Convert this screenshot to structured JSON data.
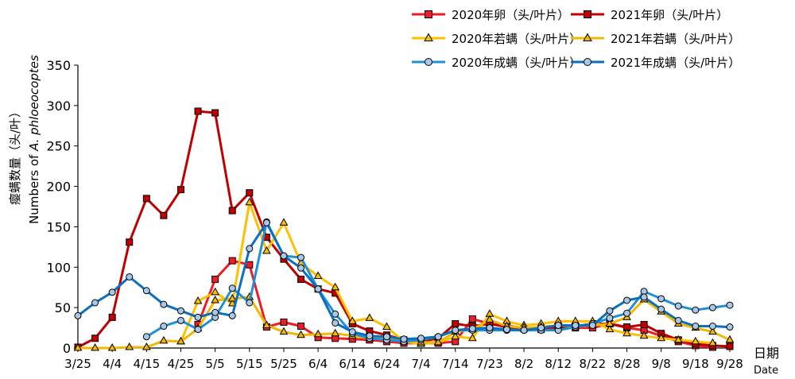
{
  "chart_data": {
    "type": "line",
    "xlabel_zh": "日期",
    "xlabel_en": "Date",
    "ylabel_zh": "瘿螨数量（头/叶）",
    "ylabel_en_prefix": "Numbers of ",
    "ylabel_en_species": "A. phloeocoptes",
    "ylim": [
      0,
      350
    ],
    "yticks": [
      0,
      50,
      100,
      150,
      200,
      250,
      300,
      350
    ],
    "xticks": [
      "3/25",
      "4/4",
      "4/15",
      "4/25",
      "5/5",
      "5/15",
      "5/25",
      "6/4",
      "6/14",
      "6/24",
      "7/4",
      "7/14",
      "7/23",
      "8/2",
      "8/12",
      "8/22",
      "8/28",
      "9/8",
      "9/18",
      "9/28"
    ],
    "x_domain": [
      0,
      19
    ],
    "legend_placement": "top-right",
    "series": [
      {
        "name": "2020年卵（头/叶片）",
        "color": "#ee1c25",
        "marker": "square",
        "x": [
          3.5,
          4,
          4.5,
          5,
          5.5,
          6,
          6.5,
          7,
          7.5,
          8,
          8.5,
          9,
          9.5,
          10,
          10.5,
          11,
          11.5,
          12,
          12.5,
          13,
          13.5,
          14,
          14.5,
          15,
          15.5,
          16,
          16.5,
          17,
          17.5,
          18,
          18.5
        ],
        "y": [
          29,
          85,
          108,
          103,
          26,
          32,
          27,
          13,
          12,
          11,
          10,
          8,
          6,
          6,
          6,
          8,
          36,
          30,
          28,
          24,
          23,
          25,
          25,
          25,
          30,
          25,
          22,
          15,
          8,
          3,
          1
        ]
      },
      {
        "name": "2021年卵（头/叶片）",
        "color": "#c00000",
        "marker": "square",
        "x": [
          0,
          0.5,
          1,
          1.5,
          2,
          2.5,
          3,
          3.5,
          4,
          4.5,
          5,
          5.5,
          6,
          6.5,
          7,
          7.5,
          8,
          8.5,
          9,
          9.5,
          10,
          10.5,
          11,
          11.5,
          12,
          12.5,
          13,
          13.5,
          14,
          14.5,
          15,
          15.5,
          16,
          16.5,
          17,
          17.5,
          18,
          18.5,
          19
        ],
        "y": [
          1,
          12,
          38,
          131,
          185,
          164,
          196,
          293,
          291,
          170,
          192,
          137,
          110,
          85,
          73,
          68,
          30,
          21,
          16,
          10,
          8,
          12,
          30,
          27,
          30,
          26,
          24,
          25,
          26,
          27,
          30,
          30,
          26,
          29,
          18,
          10,
          5,
          3,
          2
        ]
      },
      {
        "name": "2020年若螨（头/叶片）",
        "color": "#ffc000",
        "marker": "triangle",
        "x": [
          3,
          3.5,
          4,
          4.5,
          5,
          5.5,
          6,
          6.5,
          7,
          7.5,
          8,
          8.5,
          9,
          9.5,
          10,
          10.5,
          11,
          11.5,
          12,
          12.5,
          13,
          13.5,
          14,
          14.5,
          15,
          15.5,
          16,
          16.5,
          17,
          17.5,
          18,
          18.5
        ],
        "y": [
          8,
          58,
          69,
          55,
          180,
          120,
          155,
          105,
          89,
          75,
          33,
          37,
          26,
          8,
          5,
          7,
          14,
          12,
          42,
          33,
          28,
          30,
          33,
          33,
          33,
          23,
          18,
          15,
          12,
          10,
          8,
          6
        ]
      },
      {
        "name": "2021年若螨（头/叶片）",
        "color": "#f2b800",
        "marker": "triangle",
        "x": [
          0,
          0.5,
          1,
          1.5,
          2,
          2.5,
          3,
          3.5,
          4,
          4.5,
          5,
          5.5,
          6,
          6.5,
          7,
          7.5,
          8,
          8.5,
          9,
          9.5,
          10,
          10.5,
          11,
          11.5,
          12,
          12.5,
          13,
          13.5,
          14,
          14.5,
          15,
          15.5,
          16,
          16.5,
          17,
          17.5,
          18,
          18.5,
          19
        ],
        "y": [
          0,
          0,
          0,
          1,
          1,
          9,
          8,
          24,
          59,
          61,
          63,
          28,
          20,
          16,
          17,
          18,
          15,
          12,
          12,
          10,
          7,
          7,
          20,
          23,
          35,
          27,
          25,
          26,
          28,
          27,
          28,
          30,
          38,
          60,
          45,
          30,
          25,
          20,
          10
        ]
      },
      {
        "name": "2020年成螨（头/叶片）",
        "color": "#1f8fd6",
        "marker": "circle",
        "x": [
          2,
          2.5,
          3,
          3.5,
          4,
          4.5,
          5,
          5.5,
          6,
          6.5,
          7,
          7.5,
          8,
          8.5,
          9,
          9.5,
          10,
          10.5,
          11,
          11.5,
          12,
          12.5,
          13,
          13.5,
          14,
          14.5,
          15,
          15.5,
          16,
          16.5,
          17,
          17.5,
          18,
          18.5,
          19
        ],
        "y": [
          14,
          27,
          34,
          23,
          38,
          74,
          56,
          156,
          114,
          112,
          73,
          42,
          18,
          12,
          10,
          8,
          10,
          14,
          22,
          22,
          22,
          22,
          22,
          22,
          22,
          26,
          30,
          37,
          43,
          70,
          61,
          52,
          47,
          50,
          53
        ]
      },
      {
        "name": "2021年成螨（头/叶片）",
        "color": "#0b6fc0",
        "marker": "circle",
        "x": [
          0,
          0.5,
          1,
          1.5,
          2,
          2.5,
          3,
          3.5,
          4,
          4.5,
          5,
          5.5,
          6,
          6.5,
          7,
          7.5,
          8,
          8.5,
          9,
          9.5,
          10,
          10.5,
          11,
          11.5,
          12,
          12.5,
          13,
          13.5,
          14,
          14.5,
          15,
          15.5,
          16,
          16.5,
          17,
          17.5,
          18,
          18.5,
          19
        ],
        "y": [
          40,
          56,
          69,
          88,
          71,
          54,
          46,
          38,
          44,
          40,
          123,
          155,
          114,
          99,
          73,
          31,
          20,
          15,
          14,
          11,
          12,
          14,
          22,
          24,
          25,
          23,
          22,
          25,
          28,
          28,
          28,
          46,
          59,
          63,
          48,
          34,
          27,
          27,
          26
        ]
      }
    ]
  }
}
